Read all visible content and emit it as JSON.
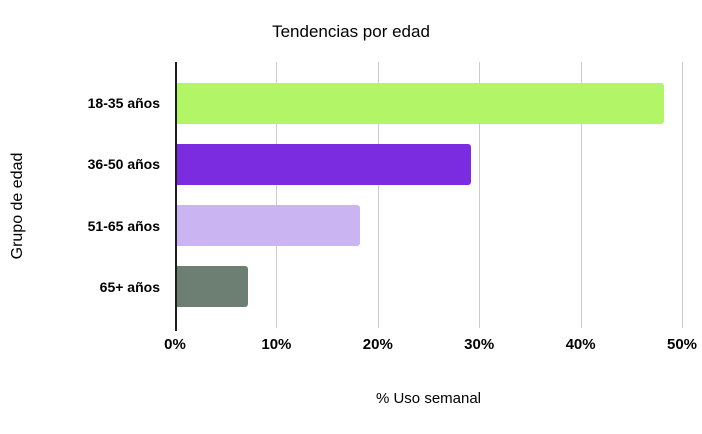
{
  "chart_data": {
    "type": "bar",
    "orientation": "horizontal",
    "title": "Tendencias por edad",
    "categories": [
      "18-35 años",
      "36-50 años",
      "51-65 años",
      "65+ años"
    ],
    "values": [
      48,
      29,
      18,
      7
    ],
    "bar_colors": [
      "#b2f566",
      "#7c2ce0",
      "#cab5f2",
      "#6d7f72"
    ],
    "xlabel": "% Uso semanal",
    "ylabel": "Grupo de edad",
    "xlim": [
      0,
      50
    ],
    "xticks": [
      0,
      10,
      20,
      30,
      40,
      50
    ],
    "xtick_labels": [
      "0%",
      "10%",
      "20%",
      "30%",
      "40%",
      "50%"
    ],
    "grid": "vertical",
    "legend": "none",
    "background": "#ffffff",
    "gridline_color": "#cccccc",
    "axis_line_color": "#1f1f1f",
    "text_color": "#000000"
  }
}
